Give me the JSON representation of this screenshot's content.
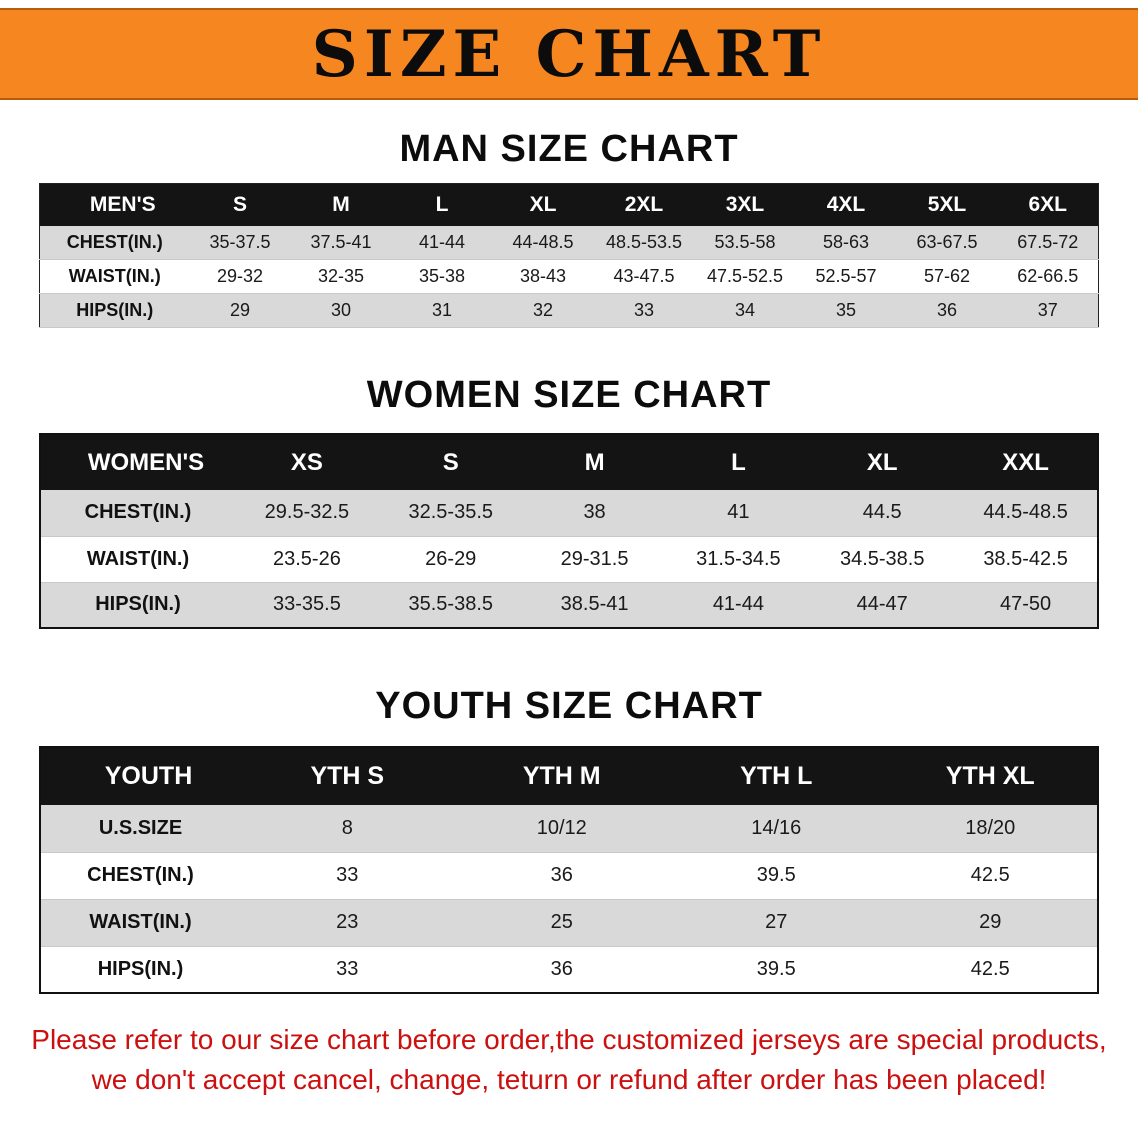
{
  "banner": {
    "title": "SIZE CHART",
    "colors": {
      "background": "#F6861F",
      "text": "#0C0C0C"
    }
  },
  "sections": [
    {
      "heading": "MAN SIZE CHART"
    },
    {
      "heading": "WOMEN SIZE CHART"
    },
    {
      "heading": "YOUTH SIZE CHART"
    }
  ],
  "chart_data": [
    {
      "type": "table",
      "title": "MAN SIZE CHART",
      "corner_label": "MEN'S",
      "columns": [
        "S",
        "M",
        "L",
        "XL",
        "2XL",
        "3XL",
        "4XL",
        "5XL",
        "6XL"
      ],
      "rows": [
        {
          "label": "CHEST(IN.)",
          "values": [
            "35-37.5",
            "37.5-41",
            "41-44",
            "44-48.5",
            "48.5-53.5",
            "53.5-58",
            "58-63",
            "63-67.5",
            "67.5-72"
          ]
        },
        {
          "label": "WAIST(IN.)",
          "values": [
            "29-32",
            "32-35",
            "35-38",
            "38-43",
            "43-47.5",
            "47.5-52.5",
            "52.5-57",
            "57-62",
            "62-66.5"
          ]
        },
        {
          "label": "HIPS(IN.)",
          "values": [
            "29",
            "30",
            "31",
            "32",
            "33",
            "34",
            "35",
            "36",
            "37"
          ]
        }
      ]
    },
    {
      "type": "table",
      "title": "WOMEN SIZE CHART",
      "corner_label": "WOMEN'S",
      "columns": [
        "XS",
        "S",
        "M",
        "L",
        "XL",
        "XXL"
      ],
      "rows": [
        {
          "label": "CHEST(IN.)",
          "values": [
            "29.5-32.5",
            "32.5-35.5",
            "38",
            "41",
            "44.5",
            "44.5-48.5"
          ]
        },
        {
          "label": "WAIST(IN.)",
          "values": [
            "23.5-26",
            "26-29",
            "29-31.5",
            "31.5-34.5",
            "34.5-38.5",
            "38.5-42.5"
          ]
        },
        {
          "label": "HIPS(IN.)",
          "values": [
            "33-35.5",
            "35.5-38.5",
            "38.5-41",
            "41-44",
            "44-47",
            "47-50"
          ]
        }
      ]
    },
    {
      "type": "table",
      "title": "YOUTH SIZE CHART",
      "corner_label": "YOUTH",
      "columns": [
        "YTH S",
        "YTH M",
        "YTH L",
        "YTH XL"
      ],
      "rows": [
        {
          "label": "U.S.SIZE",
          "values": [
            "8",
            "10/12",
            "14/16",
            "18/20"
          ]
        },
        {
          "label": "CHEST(IN.)",
          "values": [
            "33",
            "36",
            "39.5",
            "42.5"
          ]
        },
        {
          "label": "WAIST(IN.)",
          "values": [
            "23",
            "25",
            "27",
            "29"
          ]
        },
        {
          "label": "HIPS(IN.)",
          "values": [
            "33",
            "36",
            "39.5",
            "42.5"
          ]
        }
      ]
    }
  ],
  "footer_note": {
    "color": "#CC0F0F",
    "lines": [
      "Please refer to our size chart before order,the customized jerseys are special products,",
      "we don't accept cancel, change, teturn or refund after order has been placed!"
    ]
  },
  "row_colors": {
    "alt_row": "#D9D9D9",
    "header_row": "#141414"
  }
}
